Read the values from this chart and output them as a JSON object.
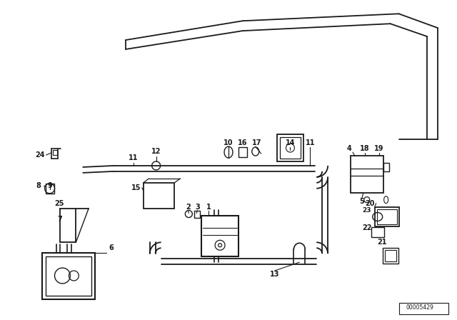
{
  "bg_color": "#ffffff",
  "line_color": "#1a1a1a",
  "diagram_id": "00005429",
  "fig_width": 6.4,
  "fig_height": 4.48,
  "dpi": 100
}
